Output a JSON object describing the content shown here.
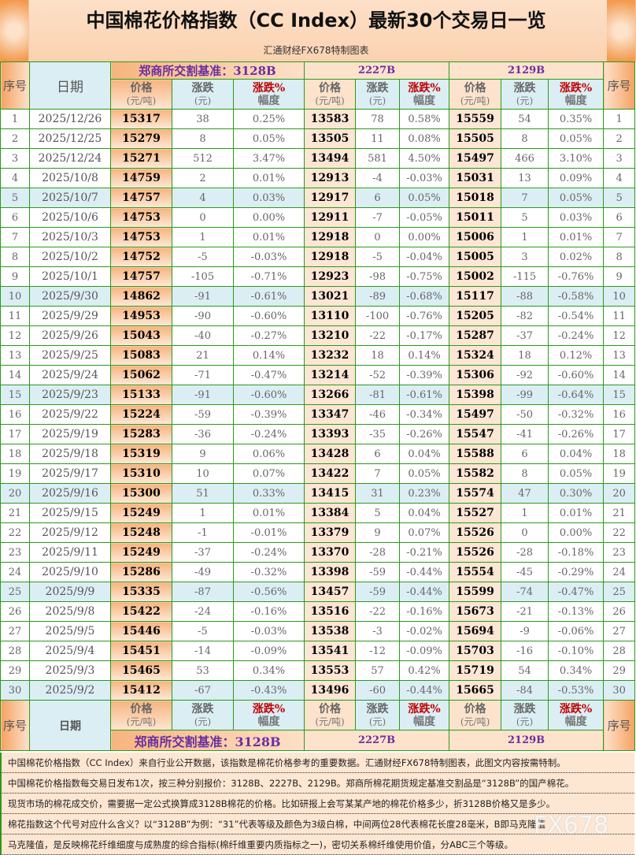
{
  "title": "中国棉花价格指数（CC Index）最新30个交易日一览",
  "subtitle": "汇通财经FX678特制图表",
  "headers": {
    "seq": "序号",
    "date": "日期",
    "price": "价格",
    "price_unit": "(元/吨)",
    "chg": "涨跌",
    "chg_unit": "(元)",
    "pct": "涨跌%",
    "pct2": "幅度"
  },
  "groups": [
    "郑商所交割基准：3128B",
    "2227B",
    "2129B"
  ],
  "rows": [
    [
      "1",
      "2025/12/26",
      "15317",
      "38",
      "0.25%",
      "13583",
      "78",
      "0.58%",
      "15559",
      "54",
      "0.35%"
    ],
    [
      "2",
      "2025/12/25",
      "15279",
      "8",
      "0.05%",
      "13505",
      "11",
      "0.08%",
      "15505",
      "8",
      "0.05%"
    ],
    [
      "3",
      "2025/12/24",
      "15271",
      "512",
      "3.47%",
      "13494",
      "581",
      "4.50%",
      "15497",
      "466",
      "3.10%"
    ],
    [
      "4",
      "2025/10/8",
      "14759",
      "2",
      "0.01%",
      "12913",
      "-4",
      "-0.03%",
      "15031",
      "13",
      "0.09%"
    ],
    [
      "5",
      "2025/10/7",
      "14757",
      "4",
      "0.03%",
      "12917",
      "6",
      "0.05%",
      "15018",
      "7",
      "0.05%"
    ],
    [
      "6",
      "2025/10/6",
      "14753",
      "0",
      "0.00%",
      "12911",
      "-7",
      "-0.05%",
      "15011",
      "5",
      "0.03%"
    ],
    [
      "7",
      "2025/10/3",
      "14753",
      "1",
      "0.01%",
      "12918",
      "0",
      "0.00%",
      "15006",
      "1",
      "0.01%"
    ],
    [
      "8",
      "2025/10/2",
      "14752",
      "-5",
      "-0.03%",
      "12918",
      "-5",
      "-0.04%",
      "15005",
      "3",
      "0.02%"
    ],
    [
      "9",
      "2025/10/1",
      "14757",
      "-105",
      "-0.71%",
      "12923",
      "-98",
      "-0.75%",
      "15002",
      "-115",
      "-0.76%"
    ],
    [
      "10",
      "2025/9/30",
      "14862",
      "-91",
      "-0.61%",
      "13021",
      "-89",
      "-0.68%",
      "15117",
      "-88",
      "-0.58%"
    ],
    [
      "11",
      "2025/9/29",
      "14953",
      "-90",
      "-0.60%",
      "13110",
      "-100",
      "-0.76%",
      "15205",
      "-82",
      "-0.54%"
    ],
    [
      "12",
      "2025/9/26",
      "15043",
      "-40",
      "-0.27%",
      "13210",
      "-22",
      "-0.17%",
      "15287",
      "-37",
      "-0.24%"
    ],
    [
      "13",
      "2025/9/25",
      "15083",
      "21",
      "0.14%",
      "13232",
      "18",
      "0.14%",
      "15324",
      "18",
      "0.12%"
    ],
    [
      "14",
      "2025/9/24",
      "15062",
      "-71",
      "-0.47%",
      "13214",
      "-52",
      "-0.39%",
      "15306",
      "-92",
      "-0.60%"
    ],
    [
      "15",
      "2025/9/23",
      "15133",
      "-91",
      "-0.60%",
      "13266",
      "-81",
      "-0.61%",
      "15398",
      "-99",
      "-0.64%"
    ],
    [
      "16",
      "2025/9/22",
      "15224",
      "-59",
      "-0.39%",
      "13347",
      "-46",
      "-0.34%",
      "15497",
      "-50",
      "-0.32%"
    ],
    [
      "17",
      "2025/9/19",
      "15283",
      "-36",
      "-0.24%",
      "13393",
      "-35",
      "-0.26%",
      "15547",
      "-41",
      "-0.26%"
    ],
    [
      "18",
      "2025/9/18",
      "15319",
      "9",
      "0.06%",
      "13428",
      "6",
      "0.04%",
      "15588",
      "6",
      "0.04%"
    ],
    [
      "19",
      "2025/9/17",
      "15310",
      "10",
      "0.07%",
      "13422",
      "7",
      "0.05%",
      "15582",
      "8",
      "0.05%"
    ],
    [
      "20",
      "2025/9/16",
      "15300",
      "51",
      "0.33%",
      "13415",
      "31",
      "0.23%",
      "15574",
      "47",
      "0.30%"
    ],
    [
      "21",
      "2025/9/15",
      "15249",
      "1",
      "0.01%",
      "13384",
      "5",
      "0.04%",
      "15527",
      "1",
      "0.01%"
    ],
    [
      "22",
      "2025/9/12",
      "15248",
      "-1",
      "-0.01%",
      "13379",
      "9",
      "0.07%",
      "15526",
      "0",
      "0.00%"
    ],
    [
      "23",
      "2025/9/11",
      "15249",
      "-37",
      "-0.24%",
      "13370",
      "-28",
      "-0.21%",
      "15526",
      "-28",
      "-0.18%"
    ],
    [
      "24",
      "2025/9/10",
      "15286",
      "-49",
      "-0.32%",
      "13398",
      "-59",
      "-0.44%",
      "15554",
      "-45",
      "-0.29%"
    ],
    [
      "25",
      "2025/9/9",
      "15335",
      "-87",
      "-0.56%",
      "13457",
      "-59",
      "-0.44%",
      "15599",
      "-74",
      "-0.47%"
    ],
    [
      "26",
      "2025/9/8",
      "15422",
      "-24",
      "-0.16%",
      "13516",
      "-22",
      "-0.16%",
      "15673",
      "-21",
      "-0.13%"
    ],
    [
      "27",
      "2025/9/5",
      "15446",
      "-5",
      "-0.03%",
      "13538",
      "-3",
      "-0.02%",
      "15694",
      "-9",
      "-0.06%"
    ],
    [
      "28",
      "2025/9/4",
      "15451",
      "-14",
      "-0.09%",
      "13541",
      "-12",
      "-0.09%",
      "15703",
      "-16",
      "-0.10%"
    ],
    [
      "29",
      "2025/9/3",
      "15465",
      "53",
      "0.34%",
      "13553",
      "57",
      "0.42%",
      "15719",
      "54",
      "0.34%"
    ],
    [
      "30",
      "2025/9/2",
      "15412",
      "-67",
      "-0.43%",
      "13496",
      "-60",
      "-0.44%",
      "15665",
      "-84",
      "-0.53%"
    ]
  ],
  "notes": [
    "中国棉花价格指数（CC Index）来自行业公开数据，该指数是棉花价格参考的重要数据。汇通财经FX678特制图表，此图文内容按需特制。",
    "中国棉花价格指数每交易日发布1次，按三种分别报价：3128B、2227B、2129B。郑商所棉花期货规定基准交割品是“3128B”的国产棉花。",
    "现货市场的棉花成交价，需要据一定公式换算成3128B棉花的价格。比如研报上会写某某产地的棉花价格多少，折3128B价格又是多少。",
    "棉花指数这个代号对应什么含义？以“3128B”为例：“31”代表等级及颜色为3级白棉，中间两位28代表棉花长度28毫米，B即马克隆值",
    "马克隆值，是反映棉花纤维细度与成熟度的综合指标(棉纤维重要内质指标之一)，密切关系棉纤维使用价值，分ABC三个等级。"
  ],
  "watermark": "FX678",
  "colors": {
    "border": "#2a9a1a",
    "orange": "#f39a4e",
    "header_blue": "#dbeef4",
    "group_purple": "#6a2fa0",
    "pct_red": "#c00000"
  }
}
